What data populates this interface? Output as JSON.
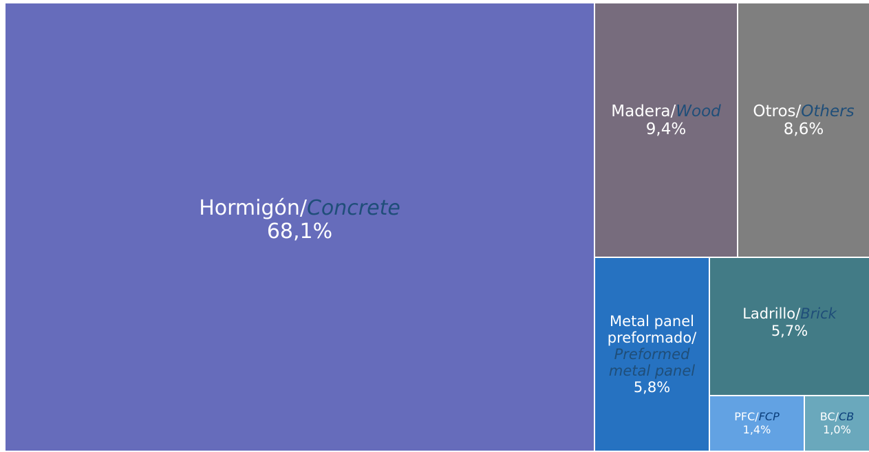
{
  "chart_data": {
    "type": "treemap",
    "items": [
      {
        "label_es": "Hormigón/",
        "label_en": "Concrete",
        "value": 68.1,
        "value_label": "68,1%",
        "color": "#666cbb"
      },
      {
        "label_es": "Madera/",
        "label_en": "Wood",
        "value": 9.4,
        "value_label": "9,4%",
        "color": "#776c7d"
      },
      {
        "label_es": "Otros/",
        "label_en": "Others",
        "value": 8.6,
        "value_label": "8,6%",
        "color": "#7f7f7f"
      },
      {
        "label_es": "Metal panel preformado/",
        "label_en": "Preformed metal panel",
        "value": 5.8,
        "value_label": "5,8%",
        "color": "#2672c1"
      },
      {
        "label_es": "Ladrillo/",
        "label_en": "Brick",
        "value": 5.7,
        "value_label": "5,7%",
        "color": "#427b86"
      },
      {
        "label_es": "PFC/",
        "label_en": "FCP",
        "value": 1.4,
        "value_label": "1,4%",
        "color": "#62a2e3"
      },
      {
        "label_es": "BC/",
        "label_en": "CB",
        "value": 1.0,
        "value_label": "1,0%",
        "color": "#6aa8bc"
      }
    ]
  }
}
